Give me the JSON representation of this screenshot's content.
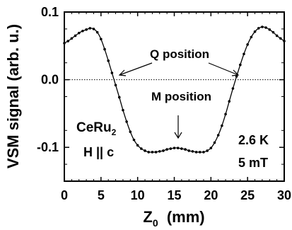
{
  "chart_data": {
    "type": "line",
    "xlabel_main": "Z",
    "xlabel_sub": "0",
    "xlabel_unit": "  (mm)",
    "ylabel": "VSM signal (arb. u.)",
    "xlim": [
      0,
      30
    ],
    "ylim": [
      -0.15,
      0.1
    ],
    "xticks": [
      0,
      5,
      10,
      15,
      20,
      25,
      30
    ],
    "xtick_labels": [
      "0",
      "5",
      "10",
      "15",
      "20",
      "25",
      "30"
    ],
    "yticks": [
      0.1,
      0.0,
      -0.1
    ],
    "ytick_labels": [
      "0.1",
      "0.0",
      "-0.1"
    ],
    "reference_line_y": 0.0,
    "grid": false,
    "series": [
      {
        "marker": "dot-line",
        "x": [
          0,
          0.5,
          1,
          1.5,
          2,
          2.5,
          3,
          3.5,
          4,
          4.5,
          5,
          5.5,
          6,
          6.5,
          7,
          7.5,
          8,
          8.5,
          9,
          9.5,
          10,
          10.5,
          11,
          11.5,
          12,
          12.5,
          13,
          13.5,
          14,
          14.5,
          15,
          15.5,
          16,
          16.5,
          17,
          17.5,
          18,
          18.5,
          19,
          19.5,
          20,
          20.5,
          21,
          21.5,
          22,
          22.5,
          23,
          23.5,
          24,
          24.5,
          25,
          25.5,
          26,
          26.5,
          27,
          27.5,
          28,
          28.5,
          29,
          29.5,
          30
        ],
        "y": [
          0.054,
          0.057,
          0.061,
          0.065,
          0.069,
          0.072,
          0.074,
          0.076,
          0.075,
          0.07,
          0.06,
          0.045,
          0.028,
          0.01,
          -0.008,
          -0.026,
          -0.045,
          -0.062,
          -0.077,
          -0.089,
          -0.097,
          -0.102,
          -0.105,
          -0.107,
          -0.107,
          -0.107,
          -0.106,
          -0.105,
          -0.103,
          -0.102,
          -0.101,
          -0.101,
          -0.102,
          -0.103,
          -0.105,
          -0.106,
          -0.107,
          -0.107,
          -0.107,
          -0.105,
          -0.101,
          -0.093,
          -0.082,
          -0.068,
          -0.051,
          -0.032,
          -0.013,
          0.005,
          0.022,
          0.038,
          0.052,
          0.063,
          0.071,
          0.076,
          0.078,
          0.077,
          0.074,
          0.07,
          0.065,
          0.061,
          0.057
        ]
      }
    ],
    "annotations": {
      "q_position": "Q position",
      "m_position": "M position",
      "sample": "CeRu",
      "sample_sub": "2",
      "field_dir": "H || c",
      "temperature": "2.6 K",
      "field": "5 mT"
    }
  }
}
